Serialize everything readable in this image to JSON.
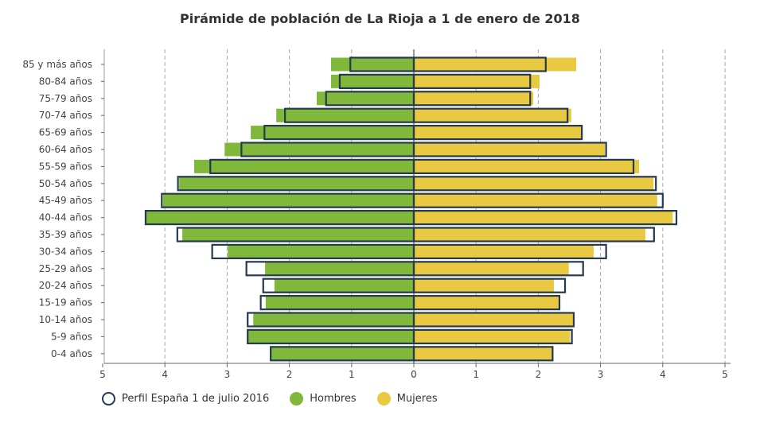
{
  "chart_data": {
    "type": "bar",
    "orientation": "horizontal-pyramid",
    "title": "Pirámide de población de La Rioja a 1 de enero de 2018",
    "categories": [
      "85 y más años",
      "80-84 años",
      "75-79 años",
      "70-74 años",
      "65-69 años",
      "60-64 años",
      "55-59 años",
      "50-54 años",
      "45-49 años",
      "40-44 años",
      "35-39 años",
      "30-34 años",
      "25-29 años",
      "20-24 años",
      "15-19 años",
      "10-14 años",
      "5-9 años",
      "0-4 años"
    ],
    "xlim": [
      -5,
      5
    ],
    "xticks": [
      "5",
      "4",
      "3",
      "2",
      "1",
      "0",
      "1",
      "2",
      "3",
      "4",
      "5"
    ],
    "grid": true,
    "legend_position": "bottom-left",
    "series": [
      {
        "name": "Hombres",
        "color": "#80b83c",
        "values": [
          1.33,
          1.33,
          1.56,
          2.21,
          2.62,
          3.04,
          3.53,
          3.77,
          4.03,
          4.31,
          3.72,
          2.99,
          2.39,
          2.24,
          2.38,
          2.58,
          2.67,
          2.3
        ]
      },
      {
        "name": "Mujeres",
        "color": "#e9c942",
        "values": [
          2.61,
          2.02,
          1.92,
          2.53,
          2.7,
          3.07,
          3.62,
          3.85,
          3.91,
          4.16,
          3.72,
          2.89,
          2.49,
          2.25,
          2.34,
          2.56,
          2.51,
          2.23
        ]
      },
      {
        "name": "Perfil España 1 de julio 2016",
        "color": "#253a4f",
        "style": "outline",
        "hombres": [
          1.02,
          1.19,
          1.41,
          2.07,
          2.4,
          2.77,
          3.27,
          3.79,
          4.05,
          4.31,
          3.8,
          3.24,
          2.69,
          2.42,
          2.46,
          2.67,
          2.67,
          2.3
        ],
        "mujeres": [
          2.12,
          1.87,
          1.87,
          2.47,
          2.7,
          3.09,
          3.53,
          3.89,
          4.0,
          4.22,
          3.86,
          3.09,
          2.72,
          2.43,
          2.34,
          2.57,
          2.54,
          2.23
        ]
      }
    ]
  }
}
